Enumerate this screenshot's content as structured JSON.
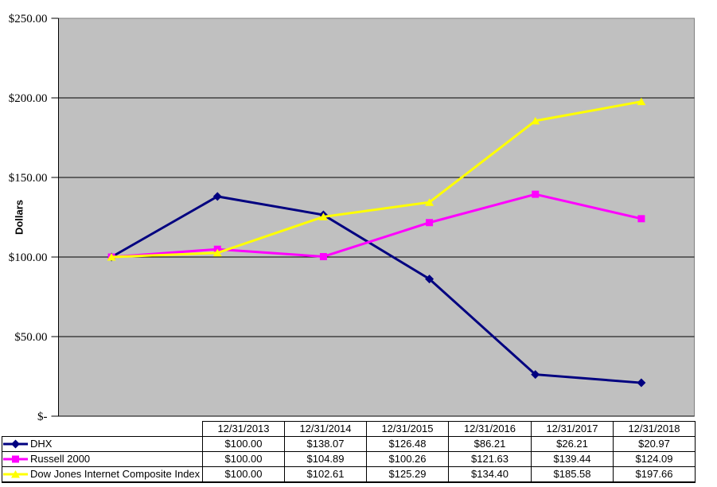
{
  "chart_data": {
    "type": "line",
    "title": "",
    "xlabel": "",
    "ylabel": "Dollars",
    "ylim": [
      0,
      250
    ],
    "grid": true,
    "plot_bg": "#c0c0c0",
    "plot_border": "#808080",
    "grid_color": "#000000",
    "axis_color": "#000000",
    "legend_position": "table-left",
    "yticks": [
      {
        "value": 0,
        "label": "$-"
      },
      {
        "value": 50,
        "label": "$50.00"
      },
      {
        "value": 100,
        "label": "$100.00"
      },
      {
        "value": 150,
        "label": "$150.00"
      },
      {
        "value": 200,
        "label": "$200.00"
      },
      {
        "value": 250,
        "label": "$250.00"
      }
    ],
    "categories": [
      "12/31/2013",
      "12/31/2014",
      "12/31/2015",
      "12/31/2016",
      "12/31/2017",
      "12/31/2018"
    ],
    "series": [
      {
        "name": "DHX",
        "color": "#000080",
        "marker": "diamond",
        "values": [
          100.0,
          138.07,
          126.48,
          86.21,
          26.21,
          20.97
        ]
      },
      {
        "name": "Russell 2000",
        "color": "#ff00ff",
        "marker": "square",
        "values": [
          100.0,
          104.89,
          100.26,
          121.63,
          139.44,
          124.09
        ]
      },
      {
        "name": "Dow Jones Internet Composite Index",
        "color": "#ffff00",
        "marker": "triangle",
        "values": [
          100.0,
          102.61,
          125.29,
          134.4,
          185.58,
          197.66
        ]
      }
    ]
  },
  "table": {
    "headers": [
      "12/31/2013",
      "12/31/2014",
      "12/31/2015",
      "12/31/2016",
      "12/31/2017",
      "12/31/2018"
    ],
    "rows": [
      {
        "label": "DHX",
        "cells": [
          "$100.00",
          "$138.07",
          "$126.48",
          "$86.21",
          "$26.21",
          "$20.97"
        ]
      },
      {
        "label": "Russell 2000",
        "cells": [
          "$100.00",
          "$104.89",
          "$100.26",
          "$121.63",
          "$139.44",
          "$124.09"
        ]
      },
      {
        "label": "Dow Jones Internet Composite Index",
        "cells": [
          "$100.00",
          "$102.61",
          "$125.29",
          "$134.40",
          "$185.58",
          "$197.66"
        ]
      }
    ]
  }
}
